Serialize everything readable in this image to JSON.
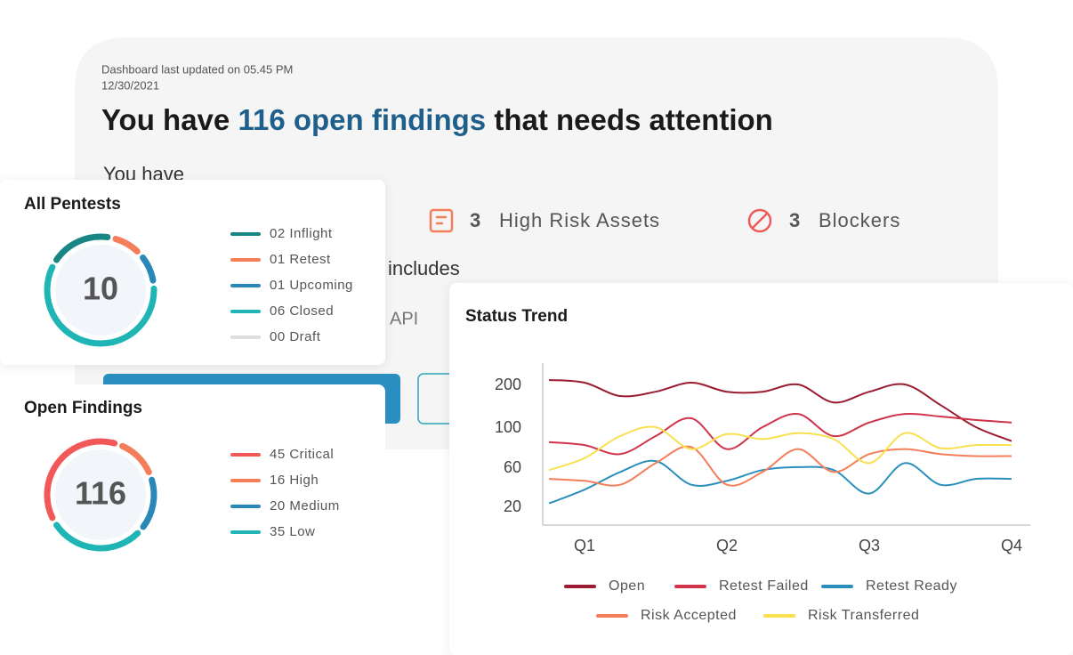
{
  "header": {
    "updated_line1": "Dashboard last updated on 05.45 PM",
    "updated_line2": "12/30/2021",
    "title_prefix": "You have ",
    "title_highlight": "116 open findings",
    "title_suffix": " that needs attention",
    "subtext": "You have",
    "includes_text": "includes",
    "api_text": "API"
  },
  "stats": [
    {
      "count": 3,
      "label": "High Risk Assets"
    },
    {
      "count": 3,
      "label": "Blockers"
    }
  ],
  "pentests": {
    "title": "All Pentests",
    "total": 10,
    "items": [
      {
        "label": "02 Inflight",
        "value": 2,
        "color": "#1a8585"
      },
      {
        "label": "01 Retest",
        "value": 1,
        "color": "#f47e5a"
      },
      {
        "label": "01 Upcoming",
        "value": 1,
        "color": "#2a88b8"
      },
      {
        "label": "06 Closed",
        "value": 6,
        "color": "#20b5b5"
      },
      {
        "label": "00 Draft",
        "value": 0,
        "color": "#dddddd"
      }
    ]
  },
  "findings": {
    "title": "Open Findings",
    "total": 116,
    "items": [
      {
        "label": "45 Critical",
        "value": 45,
        "color": "#f25858"
      },
      {
        "label": "16 High",
        "value": 16,
        "color": "#f47e5a"
      },
      {
        "label": "20 Medium",
        "value": 20,
        "color": "#2a88b8"
      },
      {
        "label": "35 Low",
        "value": 35,
        "color": "#20b5b5"
      }
    ]
  },
  "chart_data": {
    "type": "line",
    "title": "Status Trend",
    "categories": [
      null,
      "Q1",
      null,
      null,
      null,
      "Q2",
      null,
      null,
      null,
      "Q3",
      null,
      null,
      null,
      "Q4"
    ],
    "ylim": [
      0,
      250
    ],
    "yticks": [
      20,
      60,
      100,
      200
    ],
    "series": [
      {
        "name": "Open",
        "color": "#9b1b30",
        "values": [
          212,
          206,
          175,
          185,
          206,
          185,
          185,
          202,
          160,
          185,
          202,
          154,
          102,
          87
        ]
      },
      {
        "name": "Retest Failed",
        "color": "#d0344a",
        "values": [
          86,
          83,
          74,
          92,
          123,
          79,
          102,
          133,
          92,
          113,
          133,
          127,
          119,
          113
        ]
      },
      {
        "name": "Retest Ready",
        "color": "#2a8fbd",
        "values": [
          24,
          38,
          56,
          67,
          43,
          47,
          58,
          61,
          58,
          34,
          65,
          43,
          49,
          49
        ]
      },
      {
        "name": "Risk Accepted",
        "color": "#f47e5a",
        "values": [
          49,
          47,
          43,
          65,
          81,
          43,
          56,
          79,
          56,
          74,
          79,
          74,
          72,
          72
        ]
      },
      {
        "name": "Risk Transferred",
        "color": "#f8e04f",
        "values": [
          58,
          70,
          92,
          102,
          79,
          94,
          89,
          95,
          89,
          65,
          95,
          80,
          83,
          83
        ]
      }
    ]
  }
}
